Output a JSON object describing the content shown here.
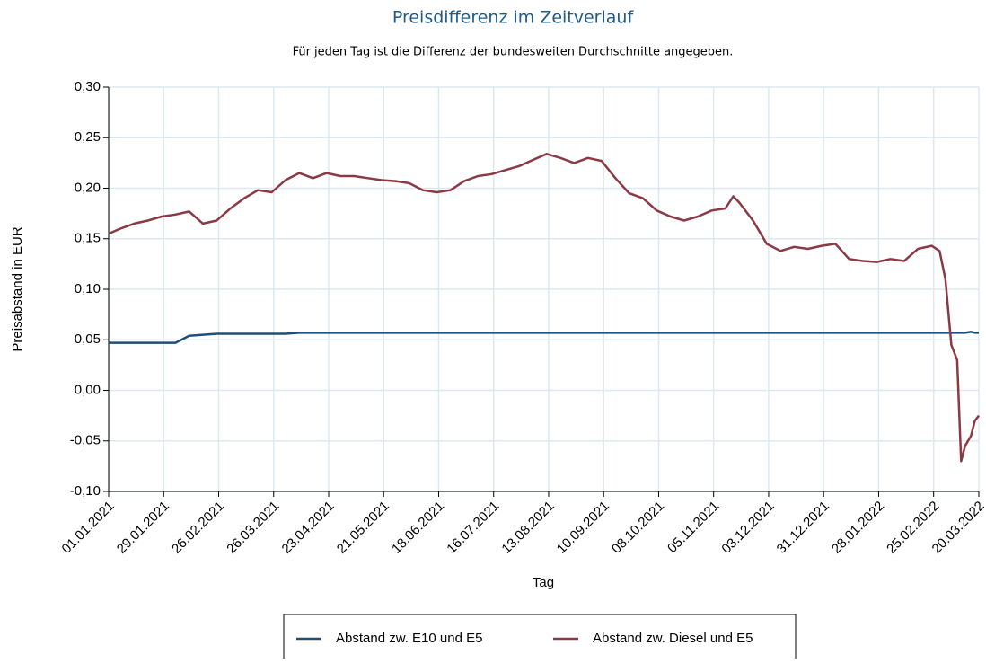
{
  "chart_data": {
    "type": "line",
    "title": "Preisdifferenz im Zeitverlauf",
    "subtitle": "Für jeden Tag ist die Differenz der bundesweiten Durchschnitte angegeben.",
    "x_label": "Tag",
    "y_label": "Preisabstand in EUR",
    "x": [
      "01.01.2021",
      "07.01.2021",
      "14.01.2021",
      "21.01.2021",
      "28.01.2021",
      "04.02.2021",
      "11.02.2021",
      "18.02.2021",
      "25.02.2021",
      "04.03.2021",
      "11.03.2021",
      "18.03.2021",
      "25.03.2021",
      "01.04.2021",
      "08.04.2021",
      "15.04.2021",
      "22.04.2021",
      "29.04.2021",
      "06.05.2021",
      "13.05.2021",
      "20.05.2021",
      "27.05.2021",
      "03.06.2021",
      "10.06.2021",
      "17.06.2021",
      "24.06.2021",
      "01.07.2021",
      "08.07.2021",
      "15.07.2021",
      "22.07.2021",
      "29.07.2021",
      "05.08.2021",
      "12.08.2021",
      "19.08.2021",
      "26.08.2021",
      "02.09.2021",
      "09.09.2021",
      "16.09.2021",
      "23.09.2021",
      "30.09.2021",
      "07.10.2021",
      "14.10.2021",
      "21.10.2021",
      "28.10.2021",
      "04.11.2021",
      "11.11.2021",
      "15.11.2021",
      "18.11.2021",
      "25.11.2021",
      "02.12.2021",
      "09.12.2021",
      "16.12.2021",
      "23.12.2021",
      "30.12.2021",
      "06.01.2022",
      "13.01.2022",
      "20.01.2022",
      "27.01.2022",
      "03.02.2022",
      "10.02.2022",
      "17.02.2022",
      "24.02.2022",
      "28.02.2022",
      "03.03.2022",
      "06.03.2022",
      "09.03.2022",
      "11.03.2022",
      "13.03.2022",
      "16.03.2022",
      "18.03.2022",
      "20.03.2022"
    ],
    "series": [
      {
        "name": "Abstand zw. E10 und E5",
        "color": "#1f4e79",
        "values": [
          0.047,
          0.047,
          0.047,
          0.047,
          0.047,
          0.047,
          0.054,
          0.055,
          0.056,
          0.056,
          0.056,
          0.056,
          0.056,
          0.056,
          0.057,
          0.057,
          0.057,
          0.057,
          0.057,
          0.057,
          0.057,
          0.057,
          0.057,
          0.057,
          0.057,
          0.057,
          0.057,
          0.057,
          0.057,
          0.057,
          0.057,
          0.057,
          0.057,
          0.057,
          0.057,
          0.057,
          0.057,
          0.057,
          0.057,
          0.057,
          0.057,
          0.057,
          0.057,
          0.057,
          0.057,
          0.057,
          0.057,
          0.057,
          0.057,
          0.057,
          0.057,
          0.057,
          0.057,
          0.057,
          0.057,
          0.057,
          0.057,
          0.057,
          0.057,
          0.057,
          0.057,
          0.057,
          0.057,
          0.057,
          0.057,
          0.057,
          0.057,
          0.057,
          0.058,
          0.057,
          0.057
        ]
      },
      {
        "name": "Abstand zw. Diesel und E5",
        "color": "#8b3a45",
        "values": [
          0.155,
          0.16,
          0.165,
          0.168,
          0.172,
          0.174,
          0.177,
          0.165,
          0.168,
          0.18,
          0.19,
          0.198,
          0.196,
          0.208,
          0.215,
          0.21,
          0.215,
          0.212,
          0.212,
          0.21,
          0.208,
          0.207,
          0.205,
          0.198,
          0.196,
          0.198,
          0.207,
          0.212,
          0.214,
          0.218,
          0.222,
          0.228,
          0.234,
          0.23,
          0.225,
          0.23,
          0.227,
          0.21,
          0.195,
          0.19,
          0.178,
          0.172,
          0.168,
          0.172,
          0.178,
          0.18,
          0.192,
          0.186,
          0.168,
          0.145,
          0.138,
          0.142,
          0.14,
          0.143,
          0.145,
          0.13,
          0.128,
          0.127,
          0.13,
          0.128,
          0.14,
          0.143,
          0.138,
          0.11,
          0.045,
          0.03,
          -0.07,
          -0.055,
          -0.045,
          -0.03,
          -0.025
        ]
      }
    ],
    "xlim": [
      "01.01.2021",
      "20.03.2022"
    ],
    "xticks": [
      "01.01.2021",
      "29.01.2021",
      "26.02.2021",
      "26.03.2021",
      "23.04.2021",
      "21.05.2021",
      "18.06.2021",
      "16.07.2021",
      "13.08.2021",
      "10.09.2021",
      "08.10.2021",
      "05.11.2021",
      "03.12.2021",
      "31.12.2021",
      "28.01.2022",
      "25.02.2022",
      "20.03.2022"
    ],
    "ylim": [
      -0.1,
      0.3
    ],
    "yticks": [
      {
        "value": -0.1,
        "label": "-0,10"
      },
      {
        "value": -0.05,
        "label": "-0,05"
      },
      {
        "value": 0,
        "label": "0,00"
      },
      {
        "value": 0.05,
        "label": "0,05"
      },
      {
        "value": 0.1,
        "label": "0,10"
      },
      {
        "value": 0.15,
        "label": "0,15"
      },
      {
        "value": 0.2,
        "label": "0,20"
      },
      {
        "value": 0.25,
        "label": "0,25"
      },
      {
        "value": 0.3,
        "label": "0,30"
      }
    ],
    "grid": true
  }
}
